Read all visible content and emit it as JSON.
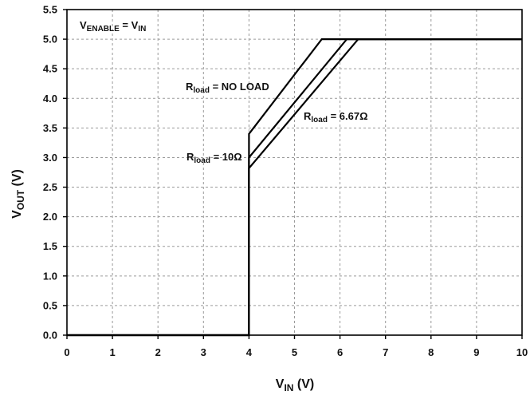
{
  "chart_data": {
    "type": "line",
    "xlabel": {
      "main": "V",
      "sub": "IN",
      "suffix": " (V)"
    },
    "ylabel": {
      "main": "V",
      "sub": "OUT",
      "suffix": " (V)"
    },
    "xlim": [
      0,
      10
    ],
    "ylim": [
      0,
      5.5
    ],
    "xticks": [
      "0",
      "1",
      "2",
      "3",
      "4",
      "5",
      "6",
      "7",
      "8",
      "9",
      "10"
    ],
    "yticks": [
      "0.0",
      "0.5",
      "1.0",
      "1.5",
      "2.0",
      "2.5",
      "3.0",
      "3.5",
      "4.0",
      "4.5",
      "5.0",
      "5.5"
    ],
    "grid": true,
    "condition_label": {
      "a": "V",
      "a_sub": "ENABLE",
      "eq": " = V",
      "b_sub": "IN"
    },
    "series": [
      {
        "name": "R load = NO LOAD",
        "label": {
          "main": "R",
          "sub": "load",
          "rest": " = NO LOAD"
        },
        "x": [
          0,
          4,
          4,
          5.6,
          10
        ],
        "y": [
          0,
          0,
          3.4,
          5.0,
          5.0
        ]
      },
      {
        "name": "R load = 10Ω",
        "label": {
          "main": "R",
          "sub": "load",
          "rest": " = 10Ω"
        },
        "x": [
          0,
          4,
          4,
          6.15,
          10
        ],
        "y": [
          0,
          0,
          3.0,
          5.0,
          5.0
        ]
      },
      {
        "name": "R load = 6.67Ω",
        "label": {
          "main": "R",
          "sub": "load",
          "rest": " = 6.67Ω"
        },
        "x": [
          0,
          4,
          4,
          6.4,
          10
        ],
        "y": [
          0,
          0,
          2.82,
          5.0,
          5.0
        ]
      }
    ]
  }
}
